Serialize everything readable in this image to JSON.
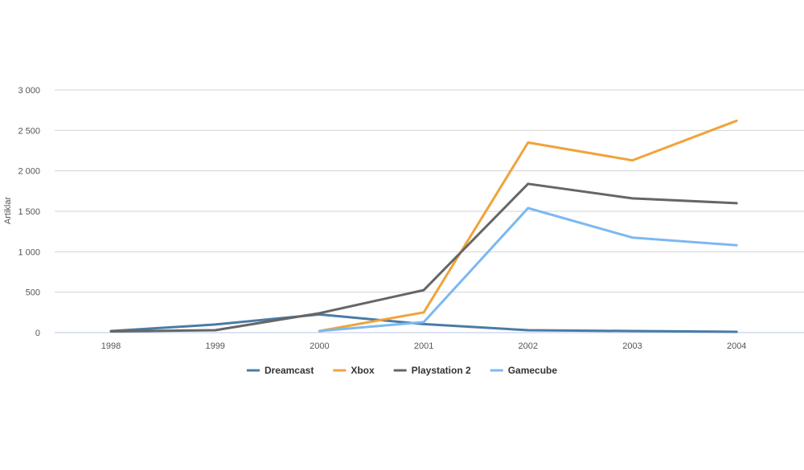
{
  "chart_data": {
    "type": "line",
    "title": "",
    "xlabel": "",
    "ylabel": "Artiklar",
    "x": [
      "1998",
      "1999",
      "2000",
      "2001",
      "2002",
      "2003",
      "2004"
    ],
    "ylim": [
      0,
      3000
    ],
    "yticks": [
      0,
      500,
      1000,
      1500,
      2000,
      2500,
      3000
    ],
    "ytick_labels": [
      "0",
      "500",
      "1 000",
      "1 500",
      "2 000",
      "2 500",
      "3 000"
    ],
    "grid": true,
    "legend_position": "bottom",
    "series": [
      {
        "name": "Dreamcast",
        "color": "#4a7ba6",
        "values": [
          20,
          100,
          225,
          105,
          30,
          20,
          10
        ]
      },
      {
        "name": "Xbox",
        "color": "#f0a33a",
        "values": [
          null,
          null,
          20,
          250,
          2350,
          2130,
          2620
        ]
      },
      {
        "name": "Playstation 2",
        "color": "#666666",
        "values": [
          15,
          30,
          240,
          525,
          1840,
          1660,
          1600
        ]
      },
      {
        "name": "Gamecube",
        "color": "#7cb8f2",
        "values": [
          null,
          null,
          20,
          130,
          1540,
          1175,
          1080
        ]
      }
    ]
  }
}
